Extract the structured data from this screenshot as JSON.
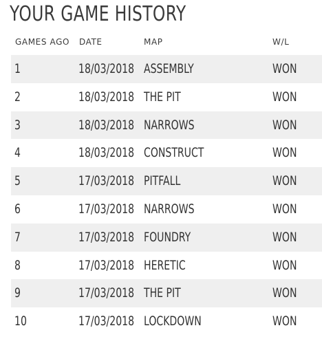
{
  "title": "YOUR GAME HISTORY",
  "columns": {
    "games_ago": "GAMES AGO",
    "date": "DATE",
    "map": "MAP",
    "wl": "W/L"
  },
  "rows": [
    {
      "games_ago": "1",
      "date": "18/03/2018",
      "map": "ASSEMBLY",
      "wl": "WON"
    },
    {
      "games_ago": "2",
      "date": "18/03/2018",
      "map": "THE PIT",
      "wl": "WON"
    },
    {
      "games_ago": "3",
      "date": "18/03/2018",
      "map": "NARROWS",
      "wl": "WON"
    },
    {
      "games_ago": "4",
      "date": "18/03/2018",
      "map": "CONSTRUCT",
      "wl": "WON"
    },
    {
      "games_ago": "5",
      "date": "17/03/2018",
      "map": "PITFALL",
      "wl": "WON"
    },
    {
      "games_ago": "6",
      "date": "17/03/2018",
      "map": "NARROWS",
      "wl": "WON"
    },
    {
      "games_ago": "7",
      "date": "17/03/2018",
      "map": "FOUNDRY",
      "wl": "WON"
    },
    {
      "games_ago": "8",
      "date": "17/03/2018",
      "map": "HERETIC",
      "wl": "WON"
    },
    {
      "games_ago": "9",
      "date": "17/03/2018",
      "map": "THE PIT",
      "wl": "WON"
    },
    {
      "games_ago": "10",
      "date": "17/03/2018",
      "map": "LOCKDOWN",
      "wl": "WON"
    }
  ]
}
